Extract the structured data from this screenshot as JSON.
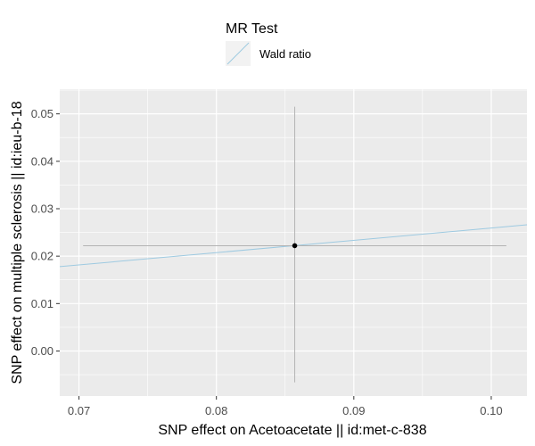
{
  "chart_data": {
    "type": "scatter",
    "legend": {
      "title": "MR Test",
      "entries": [
        {
          "label": "Wald ratio",
          "color": "#9ecae1"
        }
      ],
      "placement": "top"
    },
    "xlabel": "SNP effect on Acetoacetate || id:met-c-838",
    "ylabel": "SNP effect on multiple sclerosis || id:ieu-b-18",
    "xlim": [
      0.0686,
      0.1026
    ],
    "ylim": [
      -0.0095,
      0.0552
    ],
    "x_ticks": [
      0.07,
      0.08,
      0.09,
      0.1
    ],
    "x_tick_labels": [
      "0.07",
      "0.08",
      "0.09",
      "0.10"
    ],
    "y_ticks": [
      0.0,
      0.01,
      0.02,
      0.03,
      0.04,
      0.05
    ],
    "y_tick_labels": [
      "0.00",
      "0.01",
      "0.02",
      "0.03",
      "0.04",
      "0.05"
    ],
    "grid": true,
    "points": [
      {
        "x": 0.0857,
        "y": 0.0222,
        "x_err_low": 0.0703,
        "x_err_high": 0.1011,
        "y_err_low": -0.0066,
        "y_err_high": 0.0515
      }
    ],
    "fit_lines": [
      {
        "name": "Wald ratio",
        "slope": 0.2593,
        "intercept": 0,
        "color": "#9ecae1"
      }
    ],
    "colors": {
      "panel_background": "#ebebeb",
      "grid": "#ffffff",
      "errorbar": "#b3b3b3",
      "point": "#000000"
    }
  }
}
